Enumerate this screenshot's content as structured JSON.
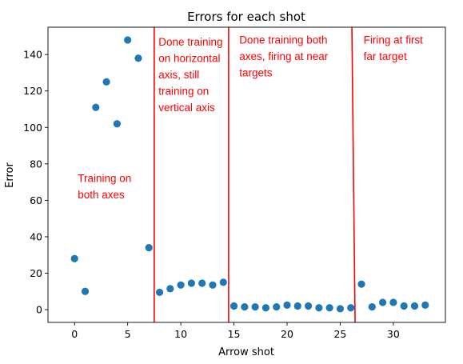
{
  "chart_data": {
    "type": "scatter",
    "title": "Errors for each shot",
    "xlabel": "Arrow shot",
    "ylabel": "Error",
    "xlim": [
      -2.5,
      34.9
    ],
    "ylim": [
      -7,
      155
    ],
    "xticks": [
      0,
      5,
      10,
      15,
      20,
      25,
      30
    ],
    "yticks": [
      0,
      20,
      40,
      60,
      80,
      100,
      120,
      140
    ],
    "grid": false,
    "point_color": "#1f77b4",
    "line_color": "#ff0000",
    "text_color": "#ff0000",
    "points": [
      {
        "x": 0,
        "y": 28
      },
      {
        "x": 1,
        "y": 10
      },
      {
        "x": 2,
        "y": 111
      },
      {
        "x": 3,
        "y": 125
      },
      {
        "x": 4,
        "y": 102
      },
      {
        "x": 5,
        "y": 148
      },
      {
        "x": 6,
        "y": 138
      },
      {
        "x": 7,
        "y": 34
      },
      {
        "x": 8,
        "y": 9.5
      },
      {
        "x": 9,
        "y": 11.5
      },
      {
        "x": 10,
        "y": 13.5
      },
      {
        "x": 11,
        "y": 14.5
      },
      {
        "x": 12,
        "y": 14.5
      },
      {
        "x": 13,
        "y": 13.5
      },
      {
        "x": 14,
        "y": 15
      },
      {
        "x": 15,
        "y": 2
      },
      {
        "x": 16,
        "y": 1.5
      },
      {
        "x": 17,
        "y": 1.5
      },
      {
        "x": 18,
        "y": 1
      },
      {
        "x": 19,
        "y": 1.5
      },
      {
        "x": 20,
        "y": 2.5
      },
      {
        "x": 21,
        "y": 2
      },
      {
        "x": 22,
        "y": 2
      },
      {
        "x": 23,
        "y": 1
      },
      {
        "x": 24,
        "y": 1
      },
      {
        "x": 25,
        "y": 0.5
      },
      {
        "x": 26,
        "y": 1
      },
      {
        "x": 27,
        "y": 14
      },
      {
        "x": 28,
        "y": 1.5
      },
      {
        "x": 29,
        "y": 4
      },
      {
        "x": 30,
        "y": 4
      },
      {
        "x": 31,
        "y": 2
      },
      {
        "x": 32,
        "y": 2
      },
      {
        "x": 33,
        "y": 2.5
      }
    ],
    "dividers": [
      {
        "x_bottom": 7.5,
        "x_top": 7.5
      },
      {
        "x_bottom": 14.5,
        "x_top": 14.5
      },
      {
        "x_bottom": 26.4,
        "x_top": 26.1
      }
    ],
    "annotations": [
      {
        "lines": [
          "Training on",
          "both axes"
        ],
        "x": 0.3,
        "y": 70
      },
      {
        "lines": [
          "Done training",
          "on horizontal",
          "axis, still",
          "training on",
          "vertical axis"
        ],
        "x": 7.9,
        "y": 145
      },
      {
        "lines": [
          "Done training both",
          "axes, firing at near",
          "targets"
        ],
        "x": 15.5,
        "y": 146
      },
      {
        "lines": [
          "Firing at first",
          "far target"
        ],
        "x": 27.2,
        "y": 146
      }
    ]
  }
}
